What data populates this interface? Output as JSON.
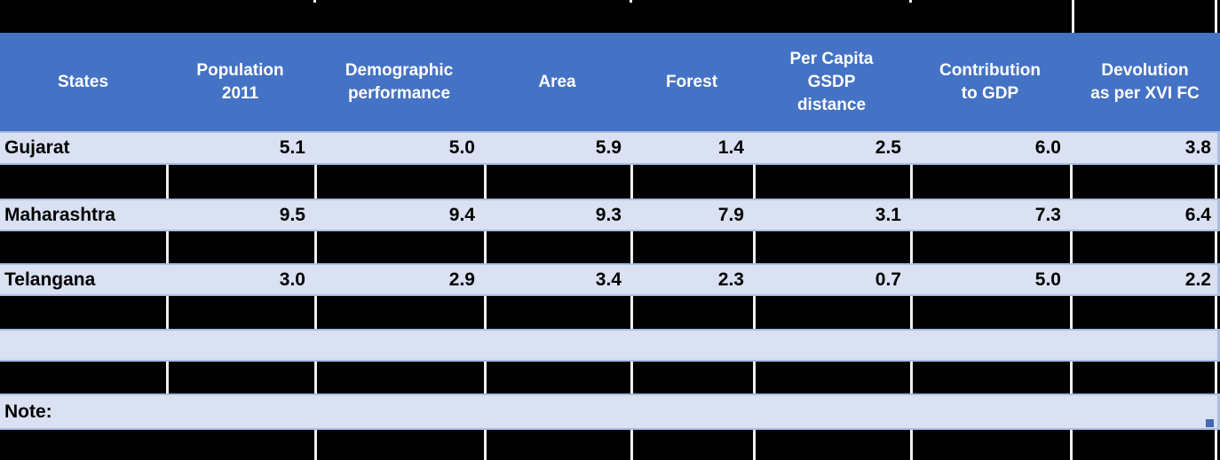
{
  "colors": {
    "header_blue": "#4472C4",
    "row_light": "#D9E1F2",
    "grid_blue": "#A8BEE4",
    "redacted_black": "#000000",
    "separator_white": "#EFEFEF",
    "text_light": "#FFFFFF",
    "text_dark": "#000000",
    "fill_handle_blue": "#4468B1",
    "bottom_edge": "#B4C6E7"
  },
  "table": {
    "columns": [
      {
        "id": "states",
        "lines": [
          "States"
        ]
      },
      {
        "id": "population-2011",
        "lines": [
          "Population",
          "2011"
        ]
      },
      {
        "id": "demographic-performance",
        "lines": [
          "Demographic",
          "performance"
        ]
      },
      {
        "id": "area",
        "lines": [
          "Area"
        ]
      },
      {
        "id": "forest",
        "lines": [
          "Forest"
        ]
      },
      {
        "id": "per-capita-gsdp-distance",
        "lines": [
          "Per Capita",
          "GSDP",
          "distance"
        ]
      },
      {
        "id": "contribution-to-gdp",
        "lines": [
          "Contribution",
          "to GDP"
        ]
      },
      {
        "id": "devolution-xvi-fc",
        "lines": [
          "Devolution",
          "as per XVI FC"
        ]
      }
    ],
    "states": [
      {
        "name": "Gujarat",
        "values": [
          "5.1",
          "5.0",
          "5.9",
          "1.4",
          "2.5",
          "6.0",
          "3.8"
        ]
      },
      {
        "name": "Maharashtra",
        "values": [
          "9.5",
          "9.4",
          "9.3",
          "7.9",
          "3.1",
          "7.3",
          "6.4"
        ]
      },
      {
        "name": "Telangana",
        "values": [
          "3.0",
          "2.9",
          "3.4",
          "2.3",
          "0.7",
          "5.0",
          "2.2"
        ]
      }
    ],
    "note_label": "Note:"
  }
}
